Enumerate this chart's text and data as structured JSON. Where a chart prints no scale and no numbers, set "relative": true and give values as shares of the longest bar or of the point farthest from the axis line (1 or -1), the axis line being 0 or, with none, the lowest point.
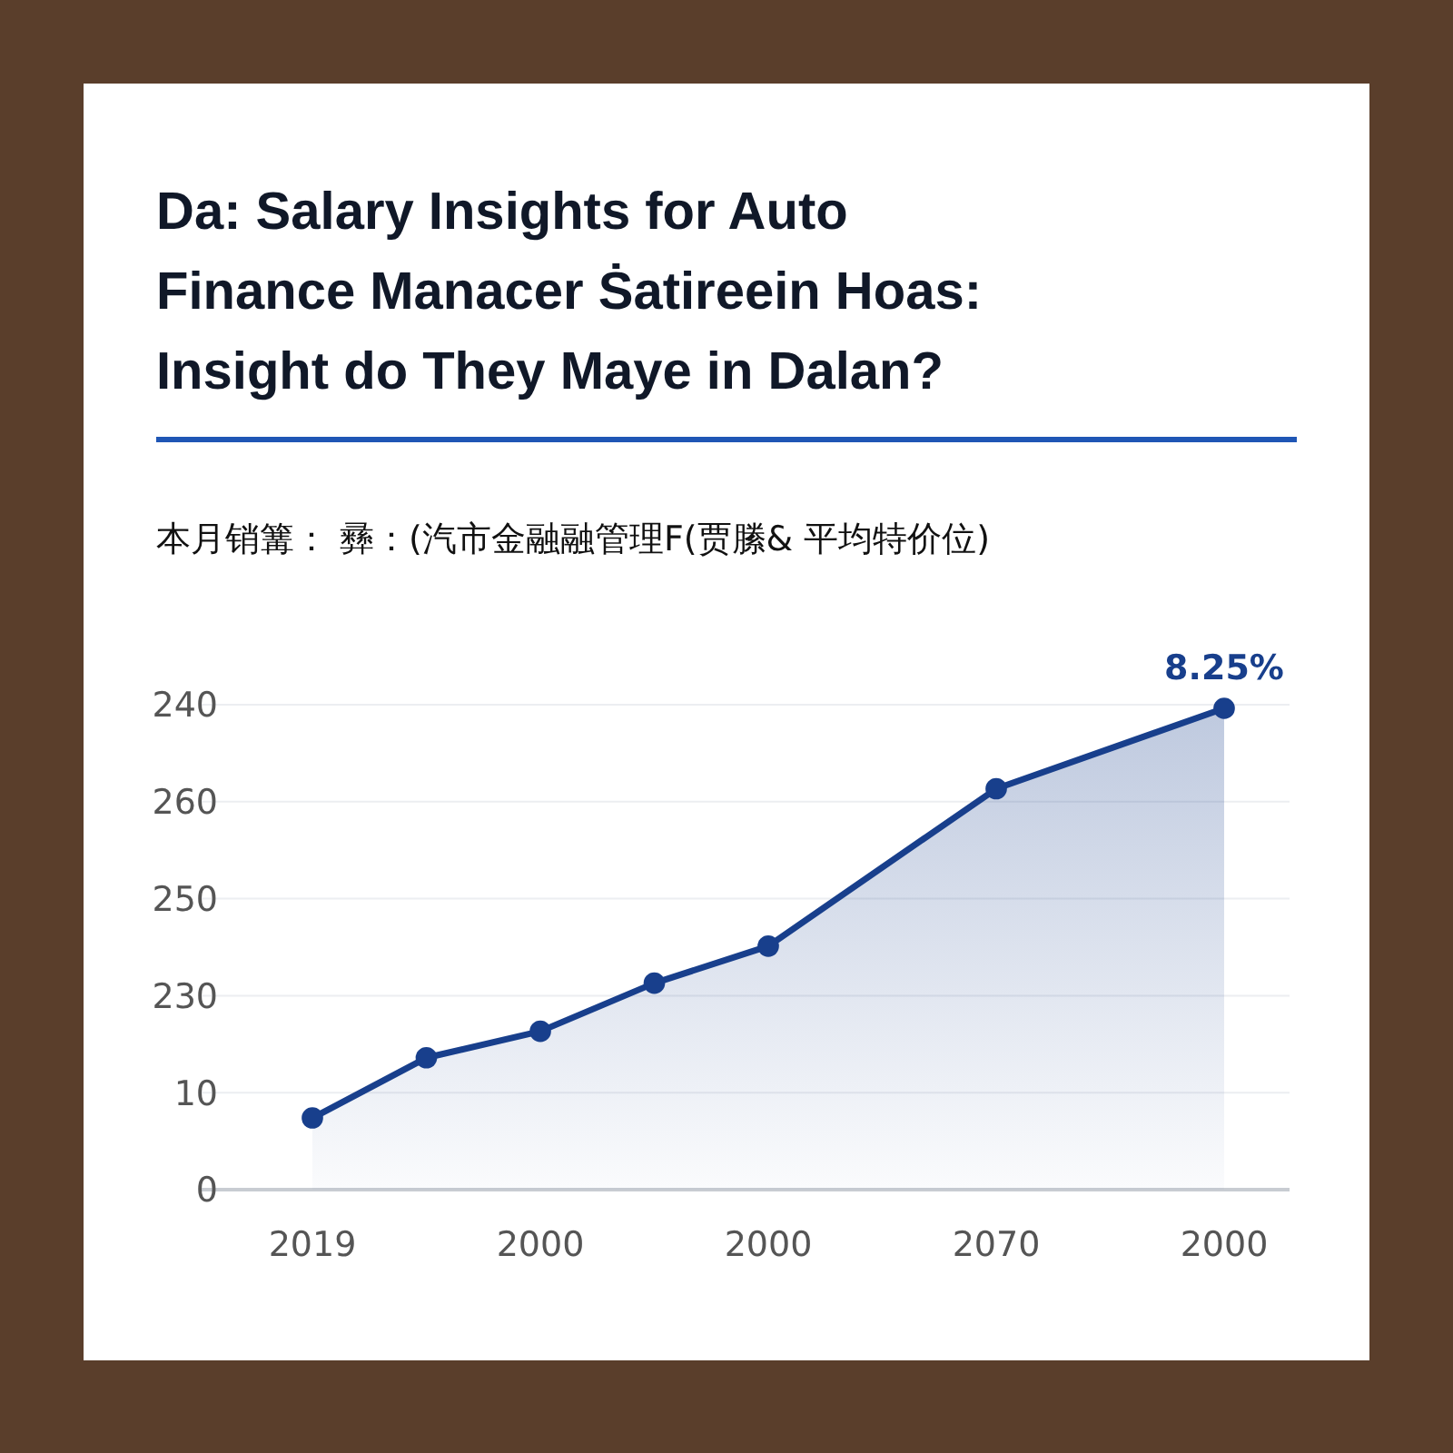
{
  "chart_data": {
    "type": "area",
    "title": "Da: Salary Insights for Auto\nFinance Manacer Ṡatireein Hoas:\nInsight do They Maye in Dalan?",
    "subtitle": "本月销篝： 彞：(汽市金融融管理F(贾縢& 平均特价位)",
    "categories": [
      "2019",
      null,
      "2000",
      null,
      "2000",
      null,
      "2070",
      null,
      "2000"
    ],
    "series": [
      {
        "color": "#183f8c",
        "values": [
          0.149,
          0.274,
          0.329,
          0.429,
          0.506,
          null,
          0.833,
          null,
          1
        ]
      }
    ],
    "relative": true,
    "grid": "y",
    "marker": "circle",
    "annotations": [
      "8.25%",
      "0",
      "10",
      "230",
      "250",
      "260",
      "240"
    ]
  }
}
